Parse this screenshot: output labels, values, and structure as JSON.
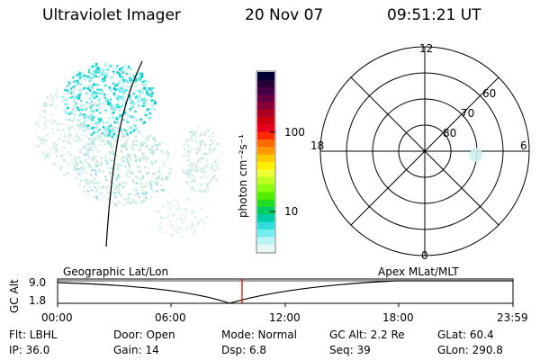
{
  "header": {
    "title": "Ultraviolet Imager",
    "date": "20 Nov 07",
    "time": "09:51:21 UT"
  },
  "colorbar": {
    "label": "photon cm⁻²s⁻¹",
    "ticks": [
      "100",
      "10"
    ],
    "colors": [
      "#000033",
      "#220033",
      "#440044",
      "#660044",
      "#880033",
      "#aa0022",
      "#cc0011",
      "#e6001a",
      "#ff2a00",
      "#ff6a00",
      "#ff9900",
      "#ffcc00",
      "#ffee00",
      "#eeff33",
      "#bbff22",
      "#88ff11",
      "#55ee00",
      "#22dd22",
      "#00cc66",
      "#00ccaa",
      "#33dddd",
      "#77eeee",
      "#bbf2f2",
      "#e8f8f8"
    ]
  },
  "polar": {
    "labels": {
      "top": "12",
      "bottom": "0",
      "left": "18",
      "right": "6"
    },
    "lat_labels": [
      "60",
      "70",
      "80"
    ]
  },
  "timeline": {
    "left_title": "Geographic Lat/Lon",
    "right_title": "Apex MLat/MLT",
    "axis_label": "GC Alt",
    "y_ticks": [
      "9.0",
      "1.8"
    ],
    "x_ticks": [
      "00:00",
      "06:00",
      "12:00",
      "18:00",
      "23:59"
    ]
  },
  "info": {
    "row1": [
      "Flt: LBHL",
      "Door: Open",
      "Mode: Normal",
      "GC Alt: 2.2 Re",
      "GLat:  60.4"
    ],
    "row2": [
      "IP: 36.0",
      "Gain: 14",
      "Dsp:      6.8",
      "Seq: 39",
      "GLon: 290.8"
    ]
  }
}
